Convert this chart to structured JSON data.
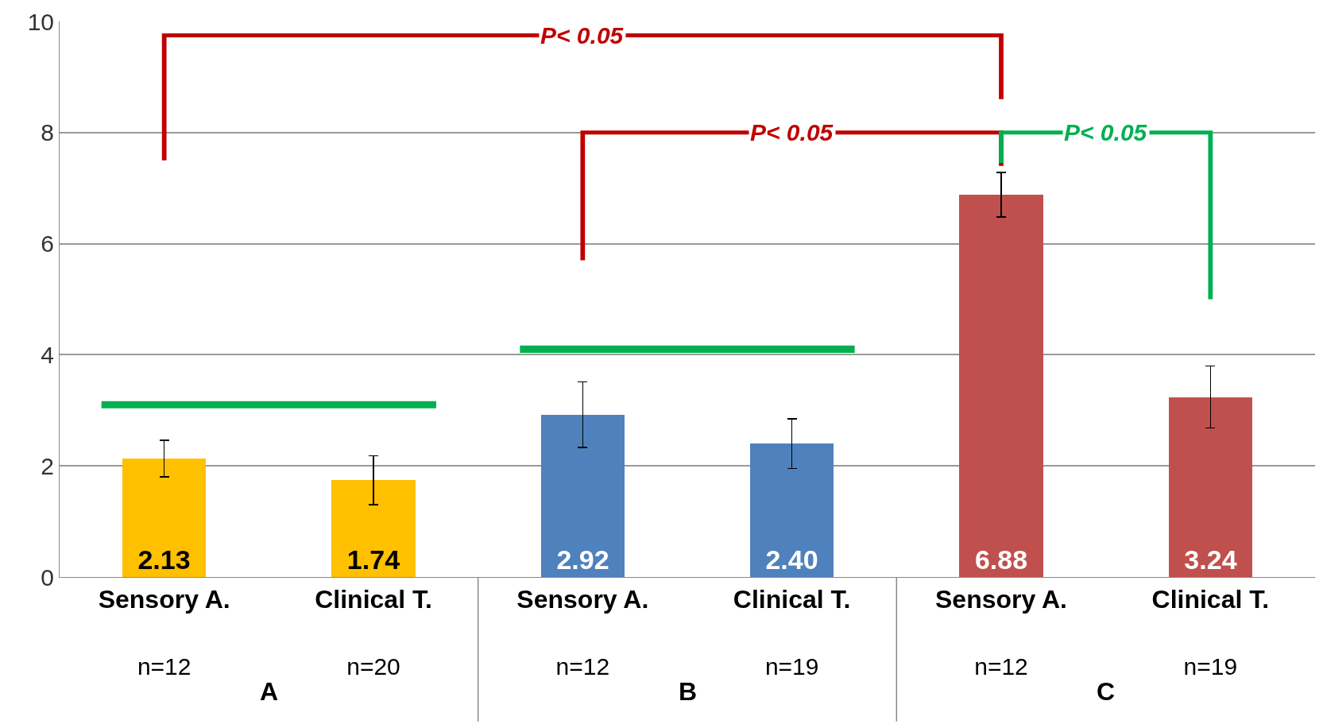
{
  "chart_data": {
    "type": "bar",
    "categories": [
      "Sensory A.",
      "Clinical T.",
      "Sensory A.",
      "Clinical T.",
      "Sensory A.",
      "Clinical T."
    ],
    "values": [
      2.13,
      1.74,
      2.92,
      2.4,
      6.88,
      3.24
    ],
    "colors": [
      "#ffc000",
      "#ffc000",
      "#4f81bd",
      "#4f81bd",
      "#c0504d",
      "#c0504d"
    ],
    "errors": [
      0.33,
      0.44,
      0.59,
      0.45,
      0.4,
      0.56
    ],
    "value_labels": [
      "2.13",
      "1.74",
      "2.92",
      "2.40",
      "6.88",
      "3.24"
    ],
    "ylim": [
      0,
      10
    ],
    "yticks": [
      0,
      2,
      4,
      6,
      8,
      10
    ],
    "grid": "y",
    "annotations": [
      "n=12",
      "n=20",
      "n=12",
      "n=19",
      "n=12",
      "n=19",
      "A",
      "B",
      "C",
      "P< 0.05",
      "P< 0.05",
      "P< 0.05"
    ]
  }
}
